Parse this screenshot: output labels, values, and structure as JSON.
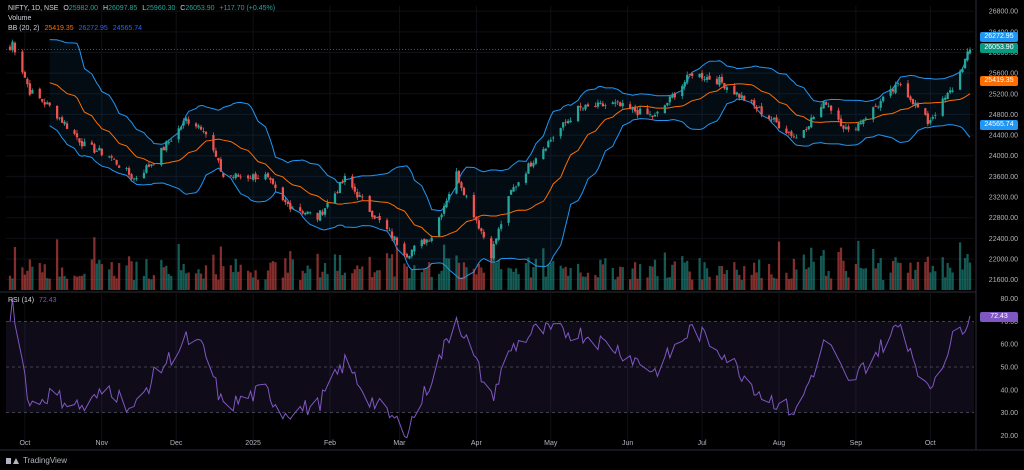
{
  "header": {
    "symbol": "NIFTY, 1D, NSE",
    "ohlc": {
      "o_label": "O",
      "o": "25982.00",
      "h_label": "H",
      "h": "26097.85",
      "l_label": "L",
      "l": "25960.30",
      "c_label": "C",
      "c": "26053.90",
      "change": "+117.70 (+0.45%)"
    },
    "volume_label": "Volume",
    "bb_label": "BB (20, 2)",
    "bb_values": {
      "basis": "25419.35",
      "upper": "26272.95",
      "lower": "24565.74"
    }
  },
  "rsi_header": {
    "label": "RSI (14)",
    "value": "72.43"
  },
  "price_badges": {
    "upper": "26272.95",
    "last": "26053.90",
    "basis": "25419.35",
    "lower": "24565.74"
  },
  "rsi_badge": "72.43",
  "footer": {
    "brand": "TradingView"
  },
  "colors": {
    "up": "#26a69a",
    "down": "#ef5350",
    "bb_band": "#2962ff",
    "bb_basis": "#ff6d00",
    "rsi_line": "#7e57c2",
    "last_price": "#26a69a",
    "upper_badge": "#2196f3"
  },
  "chart_data": [
    {
      "type": "candlestick",
      "title": "",
      "symbol": "NIFTY",
      "interval": "1D",
      "exchange": "NSE",
      "price_ticks": [
        21600,
        22000,
        22400,
        22800,
        23200,
        23600,
        24000,
        24400,
        24800,
        25200,
        25600,
        26000,
        26400,
        26800
      ],
      "ylim": [
        21400,
        26900
      ],
      "x_tick_labels": [
        "Oct",
        "Nov",
        "Dec",
        "2025",
        "Feb",
        "Mar",
        "Apr",
        "May",
        "Jun",
        "Jul",
        "Aug",
        "Sep",
        "Oct"
      ],
      "x_tick_dates": [
        "2024-10-01",
        "2024-11-01",
        "2024-12-01",
        "2025-01-01",
        "2025-02-01",
        "2025-03-01",
        "2025-04-01",
        "2025-05-01",
        "2025-06-01",
        "2025-07-01",
        "2025-08-01",
        "2025-09-01",
        "2025-10-01"
      ],
      "date_range": [
        "2024-09-25",
        "2025-10-17"
      ],
      "close_anchors": [
        {
          "date": "2024-09-26",
          "close": 26200
        },
        {
          "date": "2024-10-03",
          "close": 25250
        },
        {
          "date": "2024-10-11",
          "close": 24950
        },
        {
          "date": "2024-10-25",
          "close": 24200
        },
        {
          "date": "2024-11-04",
          "close": 24000
        },
        {
          "date": "2024-11-14",
          "close": 23550
        },
        {
          "date": "2024-11-22",
          "close": 23900
        },
        {
          "date": "2024-12-05",
          "close": 24700
        },
        {
          "date": "2024-12-12",
          "close": 24550
        },
        {
          "date": "2024-12-20",
          "close": 23600
        },
        {
          "date": "2025-01-06",
          "close": 23600
        },
        {
          "date": "2025-01-13",
          "close": 23100
        },
        {
          "date": "2025-01-27",
          "close": 22800
        },
        {
          "date": "2025-02-07",
          "close": 23550
        },
        {
          "date": "2025-02-17",
          "close": 22950
        },
        {
          "date": "2025-03-04",
          "close": 22100
        },
        {
          "date": "2025-03-14",
          "close": 22450
        },
        {
          "date": "2025-03-24",
          "close": 23650
        },
        {
          "date": "2025-04-07",
          "close": 22100
        },
        {
          "date": "2025-04-15",
          "close": 23300
        },
        {
          "date": "2025-04-25",
          "close": 24000
        },
        {
          "date": "2025-05-12",
          "close": 24900
        },
        {
          "date": "2025-05-26",
          "close": 25000
        },
        {
          "date": "2025-06-12",
          "close": 24750
        },
        {
          "date": "2025-06-27",
          "close": 25600
        },
        {
          "date": "2025-07-08",
          "close": 25450
        },
        {
          "date": "2025-07-25",
          "close": 24850
        },
        {
          "date": "2025-08-08",
          "close": 24350
        },
        {
          "date": "2025-08-20",
          "close": 25050
        },
        {
          "date": "2025-08-29",
          "close": 24450
        },
        {
          "date": "2025-09-19",
          "close": 25400
        },
        {
          "date": "2025-09-30",
          "close": 24650
        },
        {
          "date": "2025-10-10",
          "close": 25300
        },
        {
          "date": "2025-10-17",
          "close": 26053.9
        }
      ],
      "indicators": {
        "bollinger_bands": {
          "length": 20,
          "mult": 2,
          "basis": 25419.35,
          "upper": 26272.95,
          "lower": 24565.74
        },
        "volume": true
      },
      "last": {
        "open": 25982.0,
        "high": 26097.85,
        "low": 25960.3,
        "close": 26053.9,
        "change": 117.7,
        "change_pct": 0.45
      }
    },
    {
      "type": "line",
      "title": "",
      "name": "RSI (14)",
      "y_ticks": [
        20,
        30,
        40,
        50,
        60,
        70,
        80
      ],
      "ylim": [
        18,
        82
      ],
      "bands": [
        30,
        50,
        70
      ],
      "anchors": [
        {
          "date": "2024-09-26",
          "value": 79
        },
        {
          "date": "2024-10-03",
          "value": 33
        },
        {
          "date": "2024-10-11",
          "value": 38
        },
        {
          "date": "2024-10-25",
          "value": 32
        },
        {
          "date": "2024-11-04",
          "value": 41
        },
        {
          "date": "2024-11-14",
          "value": 31
        },
        {
          "date": "2024-11-22",
          "value": 46
        },
        {
          "date": "2024-12-05",
          "value": 62
        },
        {
          "date": "2024-12-12",
          "value": 58
        },
        {
          "date": "2024-12-20",
          "value": 32
        },
        {
          "date": "2025-01-06",
          "value": 40
        },
        {
          "date": "2025-01-13",
          "value": 30
        },
        {
          "date": "2025-01-27",
          "value": 33
        },
        {
          "date": "2025-02-07",
          "value": 52
        },
        {
          "date": "2025-02-17",
          "value": 36
        },
        {
          "date": "2025-03-04",
          "value": 22
        },
        {
          "date": "2025-03-14",
          "value": 45
        },
        {
          "date": "2025-03-24",
          "value": 72
        },
        {
          "date": "2025-04-07",
          "value": 36
        },
        {
          "date": "2025-04-15",
          "value": 58
        },
        {
          "date": "2025-04-25",
          "value": 66
        },
        {
          "date": "2025-05-12",
          "value": 65
        },
        {
          "date": "2025-05-26",
          "value": 59
        },
        {
          "date": "2025-06-12",
          "value": 48
        },
        {
          "date": "2025-06-27",
          "value": 67
        },
        {
          "date": "2025-07-08",
          "value": 58
        },
        {
          "date": "2025-07-25",
          "value": 38
        },
        {
          "date": "2025-08-08",
          "value": 30
        },
        {
          "date": "2025-08-20",
          "value": 62
        },
        {
          "date": "2025-08-29",
          "value": 42
        },
        {
          "date": "2025-09-19",
          "value": 69
        },
        {
          "date": "2025-09-30",
          "value": 39
        },
        {
          "date": "2025-10-10",
          "value": 62
        },
        {
          "date": "2025-10-17",
          "value": 72.43
        }
      ]
    }
  ]
}
